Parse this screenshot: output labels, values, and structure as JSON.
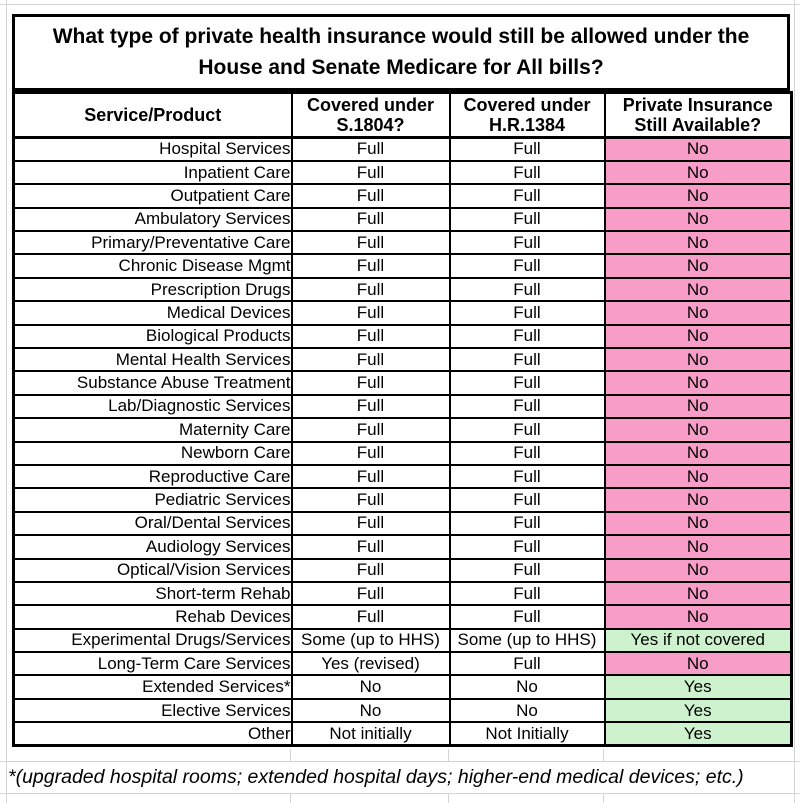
{
  "title": "What type of private health insurance would still be allowed under the House and Senate Medicare for All bills?",
  "chart_data": {
    "type": "table",
    "title": "What type of private health insurance would still be allowed under the House and Senate Medicare for All bills?",
    "columns": [
      "Service/Product",
      "Covered under S.1804?",
      "Covered under H.R.1384",
      "Private Insurance Still Available?"
    ],
    "rows": [
      {
        "service": "Hospital Services",
        "s1804": "Full",
        "hr1384": "Full",
        "private_insurance": "No",
        "highlight": "pink"
      },
      {
        "service": "Inpatient Care",
        "s1804": "Full",
        "hr1384": "Full",
        "private_insurance": "No",
        "highlight": "pink"
      },
      {
        "service": "Outpatient Care",
        "s1804": "Full",
        "hr1384": "Full",
        "private_insurance": "No",
        "highlight": "pink"
      },
      {
        "service": "Ambulatory Services",
        "s1804": "Full",
        "hr1384": "Full",
        "private_insurance": "No",
        "highlight": "pink"
      },
      {
        "service": "Primary/Preventative Care",
        "s1804": "Full",
        "hr1384": "Full",
        "private_insurance": "No",
        "highlight": "pink"
      },
      {
        "service": "Chronic Disease Mgmt",
        "s1804": "Full",
        "hr1384": "Full",
        "private_insurance": "No",
        "highlight": "pink"
      },
      {
        "service": "Prescription Drugs",
        "s1804": "Full",
        "hr1384": "Full",
        "private_insurance": "No",
        "highlight": "pink"
      },
      {
        "service": "Medical Devices",
        "s1804": "Full",
        "hr1384": "Full",
        "private_insurance": "No",
        "highlight": "pink"
      },
      {
        "service": "Biological Products",
        "s1804": "Full",
        "hr1384": "Full",
        "private_insurance": "No",
        "highlight": "pink"
      },
      {
        "service": "Mental Health Services",
        "s1804": "Full",
        "hr1384": "Full",
        "private_insurance": "No",
        "highlight": "pink"
      },
      {
        "service": "Substance Abuse Treatment",
        "s1804": "Full",
        "hr1384": "Full",
        "private_insurance": "No",
        "highlight": "pink"
      },
      {
        "service": "Lab/Diagnostic Services",
        "s1804": "Full",
        "hr1384": "Full",
        "private_insurance": "No",
        "highlight": "pink"
      },
      {
        "service": "Maternity Care",
        "s1804": "Full",
        "hr1384": "Full",
        "private_insurance": "No",
        "highlight": "pink"
      },
      {
        "service": "Newborn Care",
        "s1804": "Full",
        "hr1384": "Full",
        "private_insurance": "No",
        "highlight": "pink"
      },
      {
        "service": "Reproductive Care",
        "s1804": "Full",
        "hr1384": "Full",
        "private_insurance": "No",
        "highlight": "pink"
      },
      {
        "service": "Pediatric Services",
        "s1804": "Full",
        "hr1384": "Full",
        "private_insurance": "No",
        "highlight": "pink"
      },
      {
        "service": "Oral/Dental Services",
        "s1804": "Full",
        "hr1384": "Full",
        "private_insurance": "No",
        "highlight": "pink"
      },
      {
        "service": "Audiology Services",
        "s1804": "Full",
        "hr1384": "Full",
        "private_insurance": "No",
        "highlight": "pink"
      },
      {
        "service": "Optical/Vision Services",
        "s1804": "Full",
        "hr1384": "Full",
        "private_insurance": "No",
        "highlight": "pink"
      },
      {
        "service": "Short-term Rehab",
        "s1804": "Full",
        "hr1384": "Full",
        "private_insurance": "No",
        "highlight": "pink"
      },
      {
        "service": "Rehab Devices",
        "s1804": "Full",
        "hr1384": "Full",
        "private_insurance": "No",
        "highlight": "pink"
      },
      {
        "service": "Experimental Drugs/Services",
        "s1804": "Some (up to HHS)",
        "hr1384": "Some (up to HHS)",
        "private_insurance": "Yes if not covered",
        "highlight": "green",
        "small": true
      },
      {
        "service": "Long-Term Care Services",
        "s1804": "Yes (revised)",
        "hr1384": "Full",
        "private_insurance": "No",
        "highlight": "pink"
      },
      {
        "service": "Extended Services*",
        "s1804": "No",
        "hr1384": "No",
        "private_insurance": "Yes",
        "highlight": "green"
      },
      {
        "service": "Elective Services",
        "s1804": "No",
        "hr1384": "No",
        "private_insurance": "Yes",
        "highlight": "green"
      },
      {
        "service": "Other",
        "s1804": "Not initially",
        "hr1384": "Not Initially",
        "private_insurance": "Yes",
        "highlight": "green"
      }
    ]
  },
  "footnote": "*(upgraded hospital rooms; extended hospital days; higher-end medical devices; etc.)",
  "colors": {
    "no_highlight": "#f79dc8",
    "yes_highlight": "#cdf2cd",
    "border": "#000000",
    "gridline": "#d4d4d4"
  }
}
